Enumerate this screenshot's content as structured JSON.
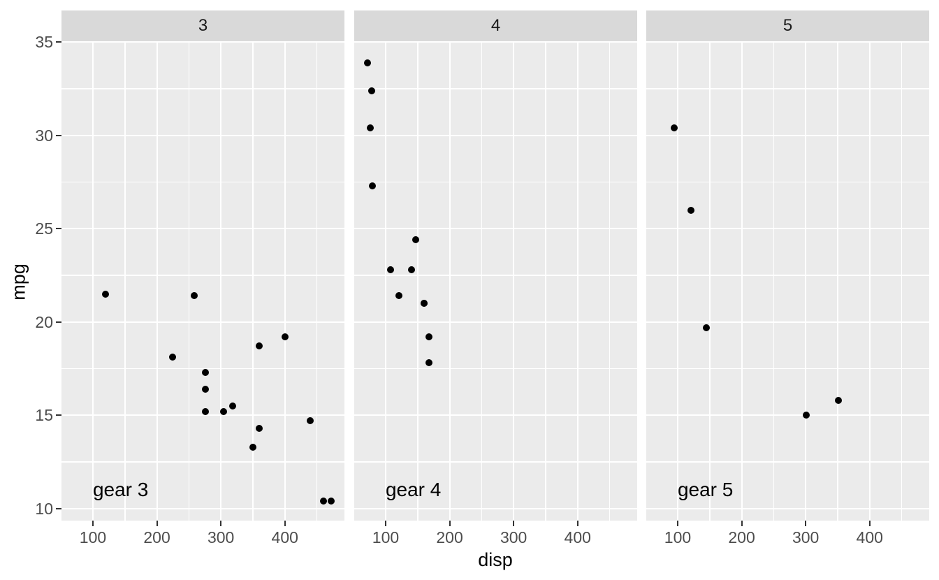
{
  "chart_data": {
    "type": "scatter",
    "title": "",
    "xlabel": "disp",
    "ylabel": "mpg",
    "facet_variable_values": [
      "3",
      "4",
      "5"
    ],
    "x_ticks": [
      100,
      200,
      300,
      400
    ],
    "x_minor_ticks": [
      150,
      250,
      350,
      450
    ],
    "y_ticks": [
      10,
      15,
      20,
      25,
      30,
      35
    ],
    "y_minor_ticks": [
      12.5,
      17.5,
      22.5,
      27.5,
      32.5
    ],
    "x_range": [
      50.9,
      493.1
    ],
    "y_range": [
      9.35,
      35.05
    ],
    "grid": "on",
    "legend": "none",
    "facets": [
      {
        "strip_label": "3",
        "annotation": {
          "text": "gear 3",
          "x": 100,
          "y": 11
        },
        "points": [
          [
            120.1,
            21.5
          ],
          [
            225,
            18.1
          ],
          [
            258,
            21.4
          ],
          [
            275.8,
            17.3
          ],
          [
            275.8,
            16.4
          ],
          [
            275.8,
            15.2
          ],
          [
            304,
            15.2
          ],
          [
            318,
            15.5
          ],
          [
            350,
            13.3
          ],
          [
            360,
            18.7
          ],
          [
            360,
            14.3
          ],
          [
            400,
            19.2
          ],
          [
            440,
            14.7
          ],
          [
            460,
            10.4
          ],
          [
            472,
            10.4
          ]
        ]
      },
      {
        "strip_label": "4",
        "annotation": {
          "text": "gear 4",
          "x": 100,
          "y": 11
        },
        "points": [
          [
            71.1,
            33.9
          ],
          [
            78.7,
            32.4
          ],
          [
            75.7,
            30.4
          ],
          [
            79,
            27.3
          ],
          [
            146.7,
            24.4
          ],
          [
            108,
            22.8
          ],
          [
            140.8,
            22.8
          ],
          [
            121,
            21.4
          ],
          [
            160,
            21.0
          ],
          [
            160,
            21.0
          ],
          [
            167.6,
            19.2
          ],
          [
            167.6,
            17.8
          ]
        ]
      },
      {
        "strip_label": "5",
        "annotation": {
          "text": "gear 5",
          "x": 100,
          "y": 11
        },
        "points": [
          [
            95.1,
            30.4
          ],
          [
            120.3,
            26.0
          ],
          [
            145,
            19.7
          ],
          [
            301,
            15.0
          ],
          [
            351,
            15.8
          ]
        ]
      }
    ],
    "colors": {
      "panel_bg": "#EBEBEB",
      "strip_bg": "#D9D9D9",
      "grid_line": "#FFFFFF",
      "point": "#000000",
      "tick_text": "#4D4D4D",
      "tick_mark": "#333333",
      "strip_text": "#1A1A1A",
      "annotation_text": "#000000",
      "plot_bg": "#FFFFFF"
    }
  }
}
